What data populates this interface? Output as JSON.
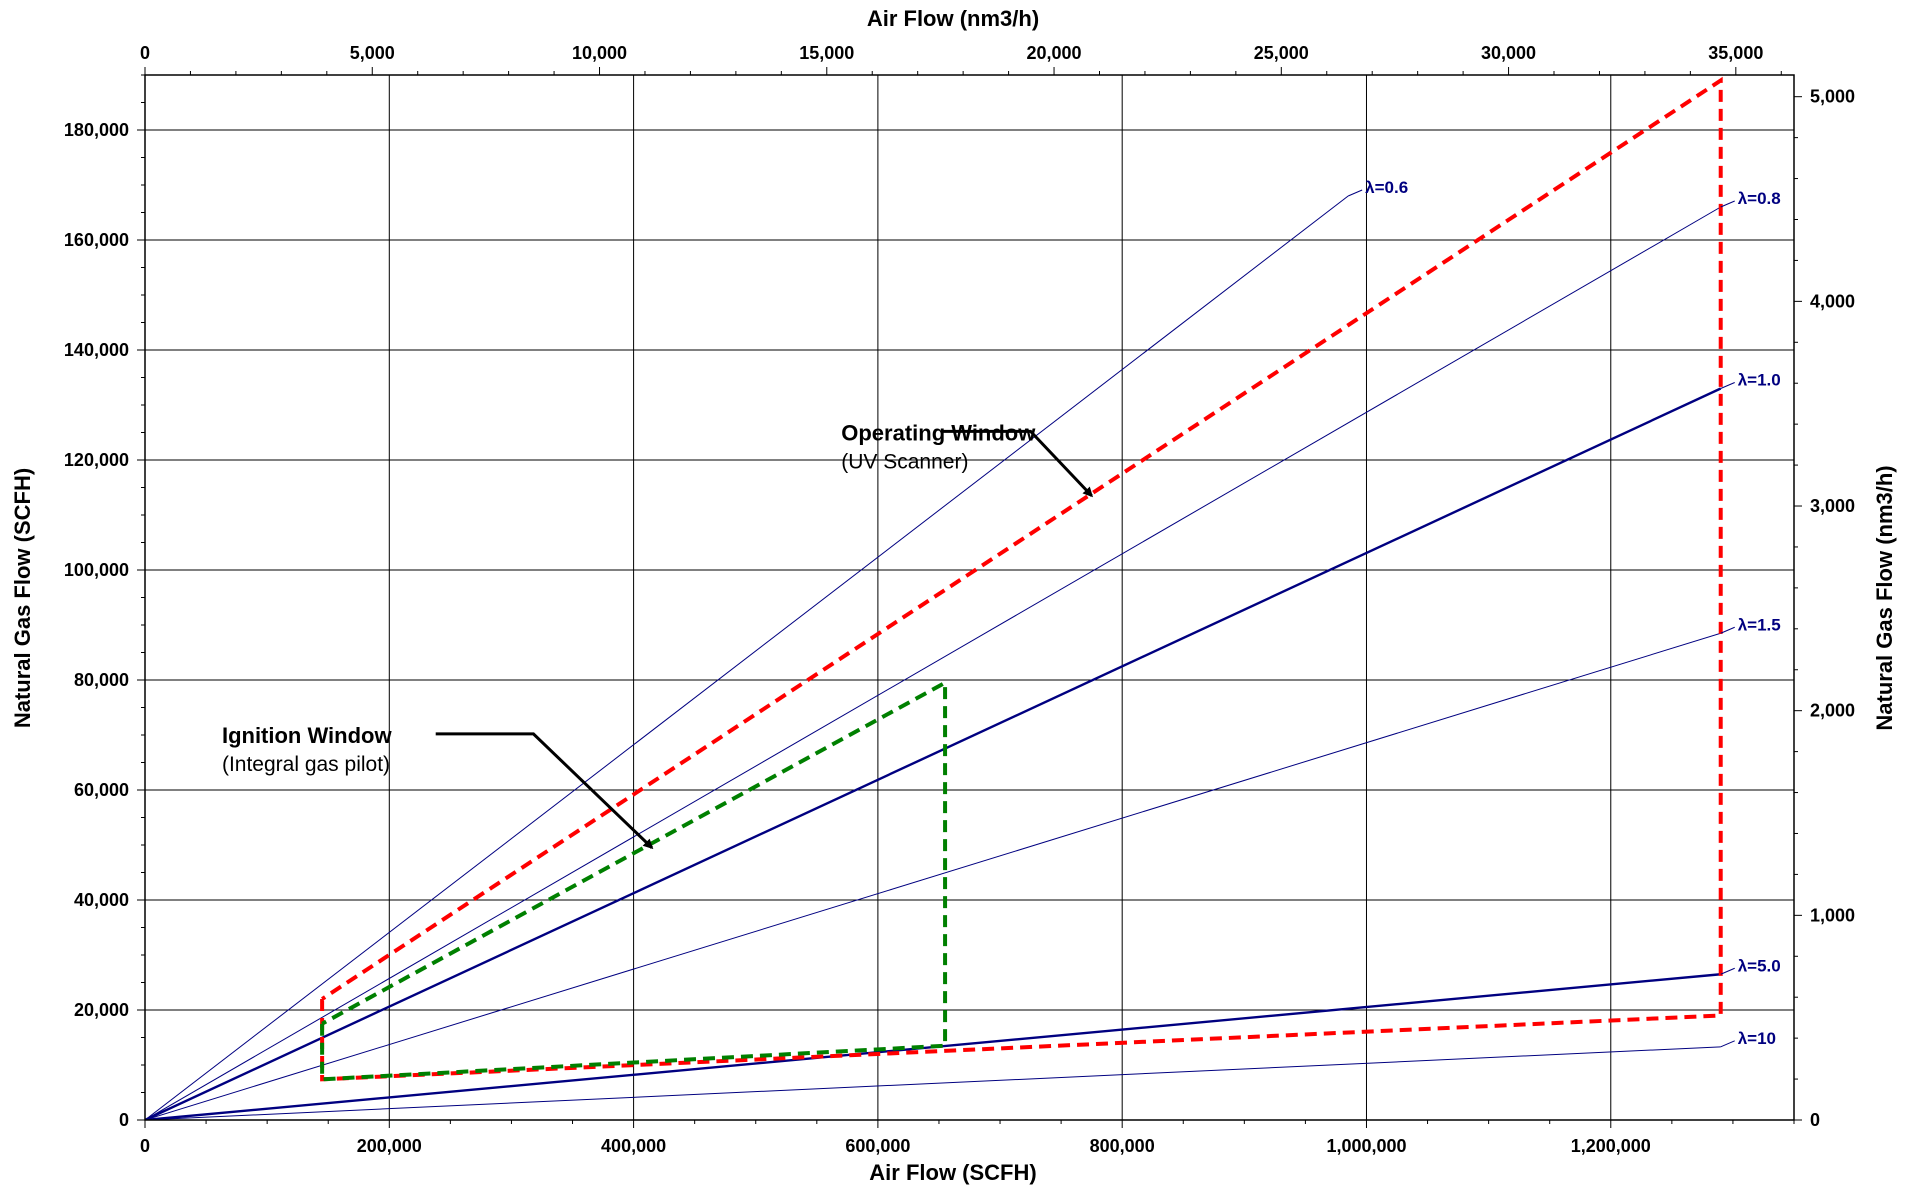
{
  "chart_data": {
    "type": "line",
    "axes": {
      "x_bottom": {
        "label": "Air Flow (SCFH)",
        "range": [
          0,
          1350000
        ],
        "ticks": [
          0,
          200000,
          400000,
          600000,
          800000,
          1000000,
          1200000
        ],
        "tick_labels": [
          "0",
          "200,000",
          "400,000",
          "600,000",
          "800,000",
          "1,000,000",
          "1,200,000"
        ],
        "minor_step": 50000
      },
      "x_top": {
        "label": "Air Flow (nm3/h)",
        "range": [
          0,
          36280
        ],
        "ticks": [
          0,
          5000,
          10000,
          15000,
          20000,
          25000,
          30000,
          35000
        ],
        "tick_labels": [
          "0",
          "5,000",
          "10,000",
          "15,000",
          "20,000",
          "25,000",
          "30,000",
          "35,000"
        ],
        "minor_step": 1000
      },
      "y_left": {
        "label": "Natural Gas Flow (SCFH)",
        "range": [
          0,
          190000
        ],
        "ticks": [
          0,
          20000,
          40000,
          60000,
          80000,
          100000,
          120000,
          140000,
          160000,
          180000
        ],
        "tick_labels": [
          "0",
          "20,000",
          "40,000",
          "60,000",
          "80,000",
          "100,000",
          "120,000",
          "140,000",
          "160,000",
          "180,000"
        ],
        "minor_step": 5000
      },
      "y_right": {
        "label": "Natural Gas Flow (nm3/h)",
        "range": [
          0,
          5106
        ],
        "ticks": [
          0,
          1000,
          2000,
          3000,
          4000,
          5000
        ],
        "tick_labels": [
          "0",
          "1,000",
          "2,000",
          "3,000",
          "4,000",
          "5,000"
        ],
        "minor_step": 200
      }
    },
    "grid": true,
    "series": [
      {
        "name": "λ=0.6",
        "color": "#000080",
        "weight": "thin",
        "x": [
          0,
          985000
        ],
        "y": [
          0,
          168000
        ],
        "label_x": 985000,
        "label_y": 168000
      },
      {
        "name": "λ=0.8",
        "color": "#000080",
        "weight": "thin",
        "x": [
          0,
          1290000
        ],
        "y": [
          0,
          166000
        ],
        "label_x": 1290000,
        "label_y": 166000
      },
      {
        "name": "λ=1.0",
        "color": "#000080",
        "weight": "thick",
        "x": [
          0,
          1290000
        ],
        "y": [
          0,
          133000
        ],
        "label_x": 1290000,
        "label_y": 133000
      },
      {
        "name": "λ=1.5",
        "color": "#000080",
        "weight": "thin",
        "x": [
          0,
          1290000
        ],
        "y": [
          0,
          88500
        ],
        "label_x": 1290000,
        "label_y": 88500
      },
      {
        "name": "λ=5.0",
        "color": "#000080",
        "weight": "thick",
        "x": [
          0,
          1290000
        ],
        "y": [
          0,
          26500
        ],
        "label_x": 1290000,
        "label_y": 26500
      },
      {
        "name": "λ=10",
        "color": "#000080",
        "weight": "thin",
        "x": [
          0,
          1290000
        ],
        "y": [
          0,
          13300
        ],
        "label_x": 1290000,
        "label_y": 13300
      }
    ],
    "windows": [
      {
        "name": "Operating Window",
        "color": "#ff0000",
        "dashed": true,
        "x": [
          145000,
          145000,
          1290000,
          1290000,
          145000
        ],
        "y": [
          22000,
          7400,
          19000,
          189000,
          22000
        ]
      },
      {
        "name": "Ignition Window",
        "color": "#008000",
        "dashed": true,
        "x": [
          145000,
          145000,
          655000,
          655000,
          145000
        ],
        "y": [
          17500,
          7400,
          13500,
          79500,
          17500
        ]
      }
    ],
    "annotations": [
      {
        "title": "Operating Window",
        "subtitle": "(UV Scanner)",
        "text_x": 570000,
        "text_y": 125000,
        "leader": [
          [
            652000,
            125200
          ],
          [
            725000,
            125200
          ],
          [
            775000,
            113500
          ]
        ]
      },
      {
        "title": "Ignition Window",
        "subtitle": "(Integral gas pilot)",
        "text_x": 63000,
        "text_y": 70000,
        "leader": [
          [
            238000,
            70200
          ],
          [
            318000,
            70200
          ],
          [
            415000,
            49500
          ]
        ]
      }
    ]
  }
}
